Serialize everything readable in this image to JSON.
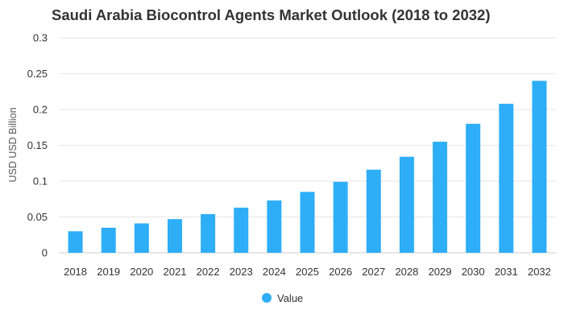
{
  "chart_data": {
    "type": "bar",
    "title": "Saudi Arabia Biocontrol Agents Market Outlook (2018 to 2032)",
    "xlabel": "",
    "ylabel": "USD USD Billion",
    "categories": [
      "2018",
      "2019",
      "2020",
      "2021",
      "2022",
      "2023",
      "2024",
      "2025",
      "2026",
      "2027",
      "2028",
      "2029",
      "2030",
      "2031",
      "2032"
    ],
    "series": [
      {
        "name": "Value",
        "color": "#2eaef7",
        "values": [
          0.03,
          0.035,
          0.041,
          0.047,
          0.054,
          0.063,
          0.073,
          0.085,
          0.099,
          0.116,
          0.134,
          0.155,
          0.18,
          0.208,
          0.24
        ]
      }
    ],
    "ylim": [
      0,
      0.3
    ],
    "yticks": [
      "0",
      "0.05",
      "0.1",
      "0.15",
      "0.2",
      "0.25",
      "0.3"
    ],
    "ytick_values": [
      0,
      0.05,
      0.1,
      0.15,
      0.2,
      0.25,
      0.3
    ],
    "grid": true,
    "legend_position": "bottom-center"
  }
}
